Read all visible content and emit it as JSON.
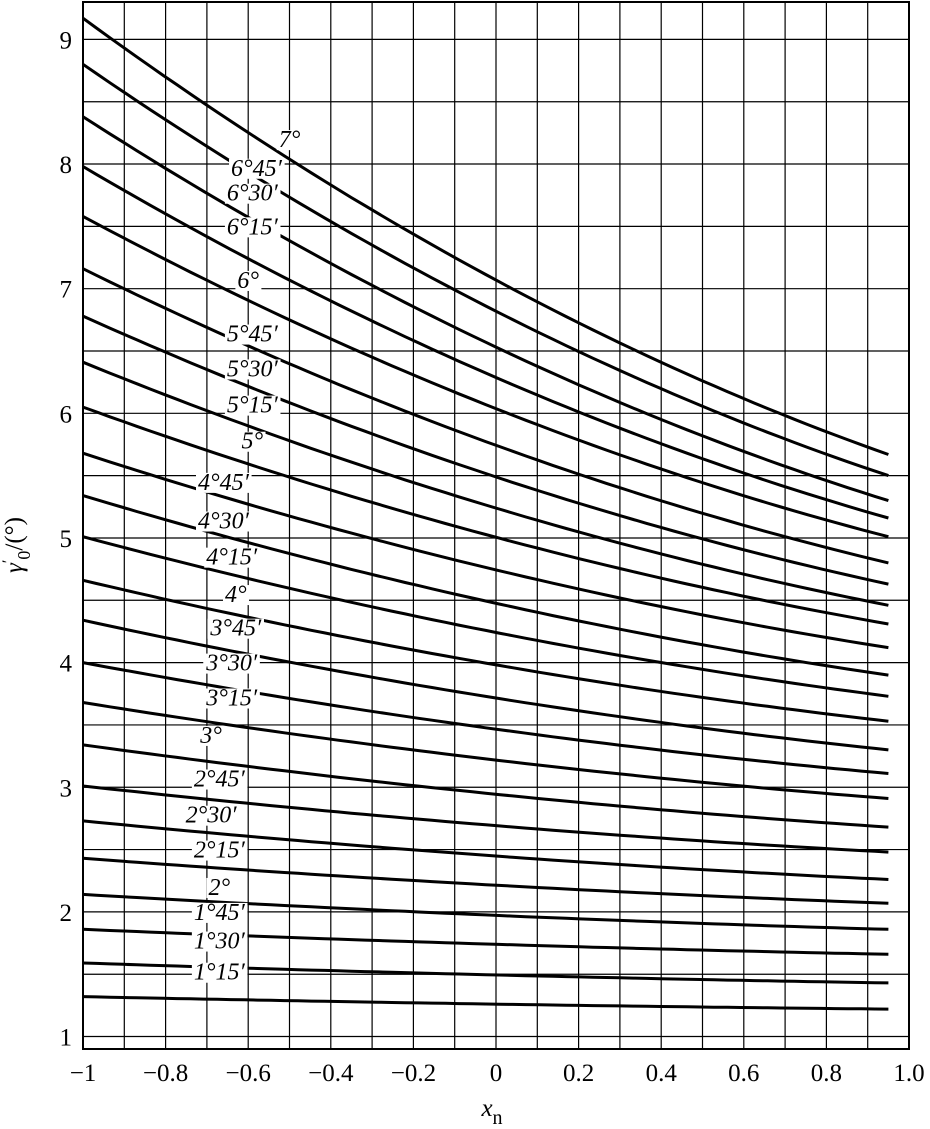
{
  "chart_data": {
    "type": "line",
    "xlabel": "x",
    "xlabel_sub": "n",
    "ylabel": "γ",
    "ylabel_sub": "0",
    "ylabel_suffix": "/(°)",
    "xlim": [
      -1.0,
      1.0
    ],
    "ylim": [
      0.9,
      9.3
    ],
    "x_ticks": [
      {
        "value": -1.0,
        "label": "−1"
      },
      {
        "value": -0.8,
        "label": "−0.8"
      },
      {
        "value": -0.6,
        "label": "−0.6"
      },
      {
        "value": -0.4,
        "label": "−0.4"
      },
      {
        "value": -0.2,
        "label": "−0.2"
      },
      {
        "value": 0.0,
        "label": "0"
      },
      {
        "value": 0.2,
        "label": "0.2"
      },
      {
        "value": 0.4,
        "label": "0.4"
      },
      {
        "value": 0.6,
        "label": "0.6"
      },
      {
        "value": 0.8,
        "label": "0.8"
      },
      {
        "value": 1.0,
        "label": "1.0"
      }
    ],
    "y_ticks": [
      {
        "value": 1,
        "label": "1"
      },
      {
        "value": 2,
        "label": "2"
      },
      {
        "value": 3,
        "label": "3"
      },
      {
        "value": 4,
        "label": "4"
      },
      {
        "value": 5,
        "label": "5"
      },
      {
        "value": 6,
        "label": "6"
      },
      {
        "value": 7,
        "label": "7"
      },
      {
        "value": 8,
        "label": "8"
      },
      {
        "value": 9,
        "label": "9"
      }
    ],
    "grid": true,
    "x_grid_step": 0.1,
    "y_grid_step": 0.5,
    "curve_x_end": 0.95,
    "series": [
      {
        "name": "7°",
        "y_start": 9.17,
        "y_end": 5.67
      },
      {
        "name": "6°45′",
        "y_start": 8.8,
        "y_end": 5.5
      },
      {
        "name": "6°30′",
        "y_start": 8.38,
        "y_end": 5.3
      },
      {
        "name": "6°15′",
        "y_start": 7.98,
        "y_end": 5.16
      },
      {
        "name": "6°",
        "y_start": 7.58,
        "y_end": 5.01
      },
      {
        "name": "5°45′",
        "y_start": 7.16,
        "y_end": 4.8
      },
      {
        "name": "5°30′",
        "y_start": 6.78,
        "y_end": 4.63
      },
      {
        "name": "5°15′",
        "y_start": 6.41,
        "y_end": 4.46
      },
      {
        "name": "5°",
        "y_start": 6.05,
        "y_end": 4.31
      },
      {
        "name": "4°45′",
        "y_start": 5.68,
        "y_end": 4.12
      },
      {
        "name": "4°30′",
        "y_start": 5.34,
        "y_end": 3.9
      },
      {
        "name": "4°15′",
        "y_start": 5.01,
        "y_end": 3.73
      },
      {
        "name": "4°",
        "y_start": 4.66,
        "y_end": 3.53
      },
      {
        "name": "3°45′",
        "y_start": 4.34,
        "y_end": 3.3
      },
      {
        "name": "3°30′",
        "y_start": 4.0,
        "y_end": 3.11
      },
      {
        "name": "3°15′",
        "y_start": 3.68,
        "y_end": 2.91
      },
      {
        "name": "3°",
        "y_start": 3.34,
        "y_end": 2.68
      },
      {
        "name": "2°45′",
        "y_start": 3.01,
        "y_end": 2.48
      },
      {
        "name": "2°30′",
        "y_start": 2.73,
        "y_end": 2.26
      },
      {
        "name": "2°15′",
        "y_start": 2.43,
        "y_end": 2.07
      },
      {
        "name": "2°",
        "y_start": 2.14,
        "y_end": 1.86
      },
      {
        "name": "1°45′",
        "y_start": 1.86,
        "y_end": 1.66
      },
      {
        "name": "1°30′",
        "y_start": 1.59,
        "y_end": 1.43
      },
      {
        "name": "1°15′",
        "y_start": 1.32,
        "y_end": 1.22
      }
    ],
    "curve_labels_x": [
      -0.5,
      -0.58,
      -0.59,
      -0.59,
      -0.6,
      -0.59,
      -0.59,
      -0.59,
      -0.59,
      -0.66,
      -0.66,
      -0.64,
      -0.63,
      -0.63,
      -0.64,
      -0.64,
      -0.69,
      -0.67,
      -0.69,
      -0.67,
      -0.67,
      -0.67,
      -0.67,
      -0.67
    ],
    "curve_labels_y": [
      8.18,
      7.95,
      7.75,
      7.48,
      7.05,
      6.62,
      6.34,
      6.05,
      5.76,
      5.43,
      5.12,
      4.83,
      4.53,
      4.26,
      3.98,
      3.7,
      3.4,
      3.05,
      2.76,
      2.48,
      2.18,
      1.98,
      1.75,
      1.5
    ]
  }
}
